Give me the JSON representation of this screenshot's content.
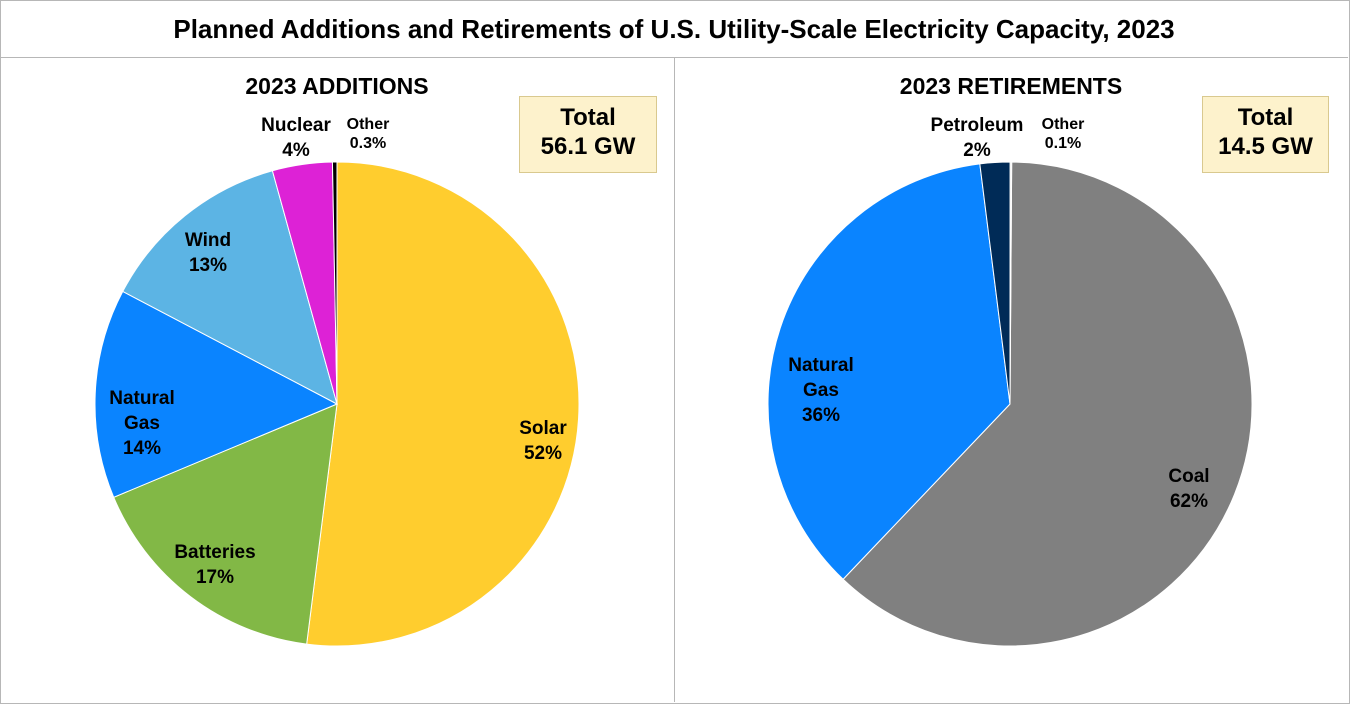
{
  "title": "Planned Additions and Retirements of U.S. Utility-Scale Electricity Capacity, 2023",
  "chart_data": [
    {
      "type": "pie",
      "title": "2023 ADDITIONS",
      "total_label": "Total",
      "total_value": "56.1 GW",
      "slices": [
        {
          "name": "Solar",
          "pct_label": "52%",
          "value": 52.0,
          "color": "#ffcd2e"
        },
        {
          "name": "Batteries",
          "pct_label": "17%",
          "value": 16.7,
          "color": "#82b846"
        },
        {
          "name": "Natural Gas",
          "pct_label": "14%",
          "value": 14.0,
          "color": "#0a84ff"
        },
        {
          "name": "Wind",
          "pct_label": "13%",
          "value": 13.0,
          "color": "#5cb4e4"
        },
        {
          "name": "Nuclear",
          "pct_label": "4%",
          "value": 4.0,
          "color": "#dd22d6"
        },
        {
          "name": "Other",
          "pct_label": "0.3%",
          "value": 0.3,
          "color": "#000000"
        }
      ]
    },
    {
      "type": "pie",
      "title": "2023 RETIREMENTS",
      "total_label": "Total",
      "total_value": "14.5 GW",
      "slices": [
        {
          "name": "Coal",
          "pct_label": "62%",
          "value": 62.0,
          "color": "#808080"
        },
        {
          "name": "Natural Gas",
          "pct_label": "36%",
          "value": 35.9,
          "color": "#0a84ff"
        },
        {
          "name": "Petroleum",
          "pct_label": "2%",
          "value": 2.0,
          "color": "#002b57"
        },
        {
          "name": "Other",
          "pct_label": "0.1%",
          "value": 0.1,
          "color": "#e8e8e8"
        }
      ]
    }
  ]
}
